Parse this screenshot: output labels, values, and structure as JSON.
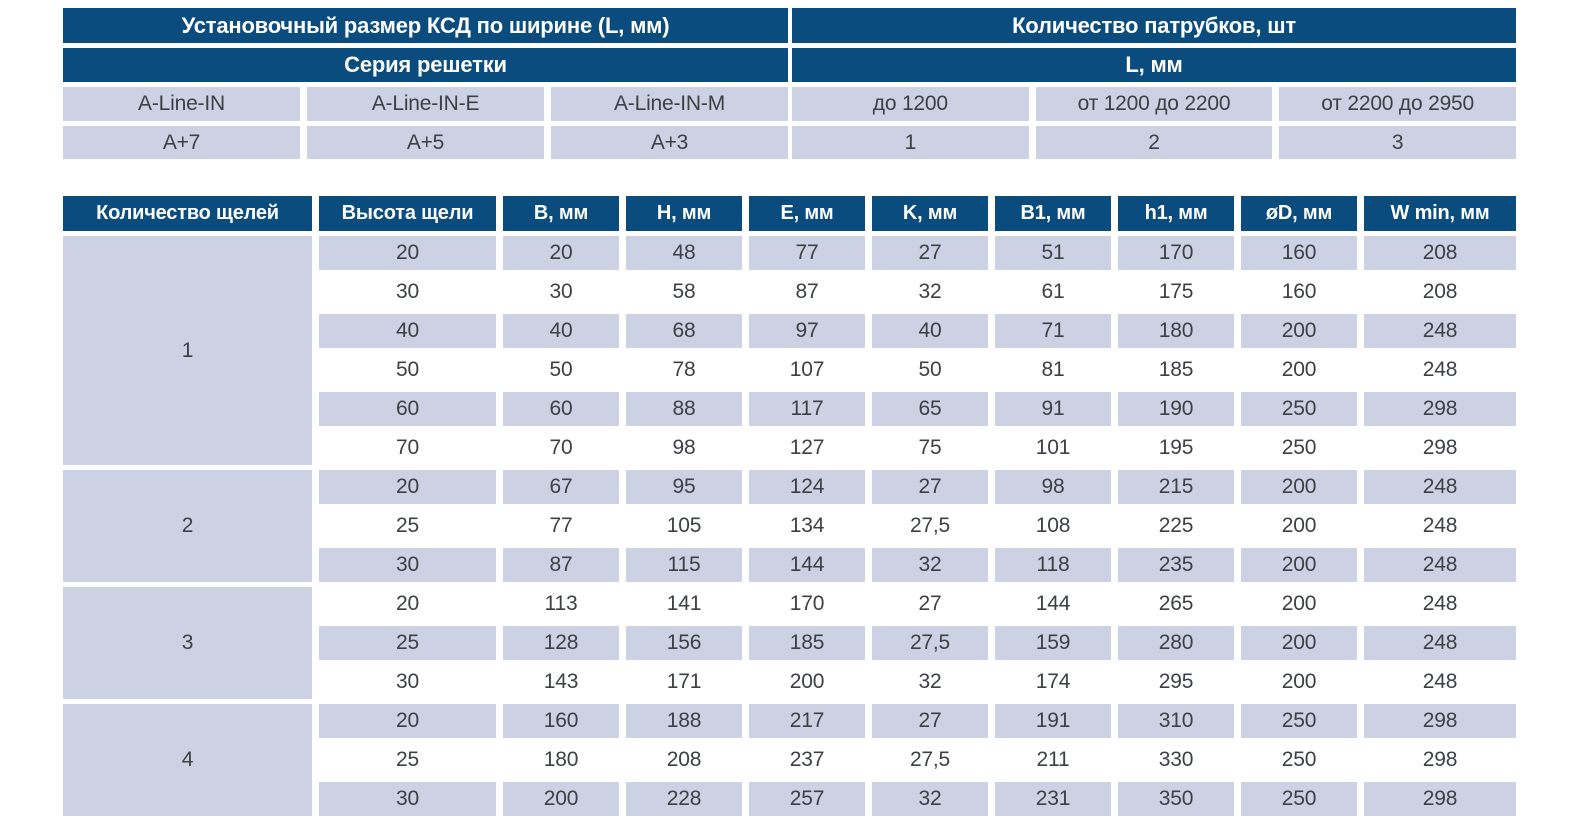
{
  "top_table": {
    "left": {
      "header1": "Установочный размер КСД по ширине (L, мм)",
      "header2": "Серия решетки",
      "columns": [
        "A-Line-IN",
        "A-Line-IN-E",
        "A-Line-IN-M"
      ],
      "values": [
        "A+7",
        "A+5",
        "A+3"
      ]
    },
    "right": {
      "header1": "Количество патрубков, шт",
      "header2": "L, мм",
      "columns": [
        "до 1200",
        "от 1200 до 2200",
        "от 2200 до 2950"
      ],
      "values": [
        "1",
        "2",
        "3"
      ]
    }
  },
  "main_table": {
    "headers": [
      "Количество щелей",
      "Высота щели",
      "B, мм",
      "H, мм",
      "E, мм",
      "K, мм",
      "B1, мм",
      "h1, мм",
      "øD, мм",
      "W min, мм"
    ],
    "groups": [
      {
        "label": "1",
        "rows": [
          [
            "20",
            "20",
            "48",
            "77",
            "27",
            "51",
            "170",
            "160",
            "208"
          ],
          [
            "30",
            "30",
            "58",
            "87",
            "32",
            "61",
            "175",
            "160",
            "208"
          ],
          [
            "40",
            "40",
            "68",
            "97",
            "40",
            "71",
            "180",
            "200",
            "248"
          ],
          [
            "50",
            "50",
            "78",
            "107",
            "50",
            "81",
            "185",
            "200",
            "248"
          ],
          [
            "60",
            "60",
            "88",
            "117",
            "65",
            "91",
            "190",
            "250",
            "298"
          ],
          [
            "70",
            "70",
            "98",
            "127",
            "75",
            "101",
            "195",
            "250",
            "298"
          ]
        ]
      },
      {
        "label": "2",
        "rows": [
          [
            "20",
            "67",
            "95",
            "124",
            "27",
            "98",
            "215",
            "200",
            "248"
          ],
          [
            "25",
            "77",
            "105",
            "134",
            "27,5",
            "108",
            "225",
            "200",
            "248"
          ],
          [
            "30",
            "87",
            "115",
            "144",
            "32",
            "118",
            "235",
            "200",
            "248"
          ]
        ]
      },
      {
        "label": "3",
        "rows": [
          [
            "20",
            "113",
            "141",
            "170",
            "27",
            "144",
            "265",
            "200",
            "248"
          ],
          [
            "25",
            "128",
            "156",
            "185",
            "27,5",
            "159",
            "280",
            "200",
            "248"
          ],
          [
            "30",
            "143",
            "171",
            "200",
            "32",
            "174",
            "295",
            "200",
            "248"
          ]
        ]
      },
      {
        "label": "4",
        "rows": [
          [
            "20",
            "160",
            "188",
            "217",
            "27",
            "191",
            "310",
            "250",
            "298"
          ],
          [
            "25",
            "180",
            "208",
            "237",
            "27,5",
            "211",
            "330",
            "250",
            "298"
          ],
          [
            "30",
            "200",
            "228",
            "257",
            "32",
            "231",
            "350",
            "250",
            "298"
          ]
        ]
      }
    ]
  },
  "colors": {
    "header_bg": "#0b4c7f",
    "header_text": "#ffffff",
    "row_shade": "#ccd2e3",
    "text": "#3d4045"
  }
}
